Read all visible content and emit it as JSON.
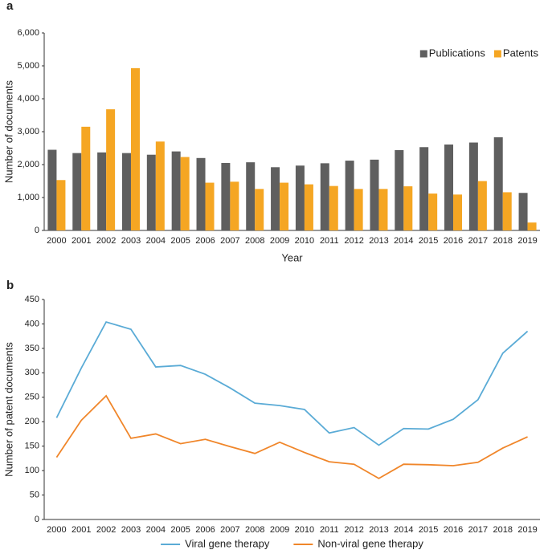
{
  "chart_data": [
    {
      "type": "bar",
      "panel": "a",
      "x_label": "Year",
      "y_label": "Number of documents",
      "legend": "upper right",
      "categories": [
        "2000",
        "2001",
        "2002",
        "2003",
        "2004",
        "2005",
        "2006",
        "2007",
        "2008",
        "2009",
        "2010",
        "2011",
        "2012",
        "2013",
        "2014",
        "2015",
        "2016",
        "2017",
        "2018",
        "2019"
      ],
      "series": [
        {
          "name": "Publications",
          "color": "#5f5f5f",
          "values": [
            2450,
            2350,
            2370,
            2350,
            2300,
            2400,
            2200,
            2050,
            2070,
            1920,
            1970,
            2040,
            2120,
            2150,
            2440,
            2530,
            2610,
            2670,
            2830,
            1140
          ]
        },
        {
          "name": "Patents",
          "color": "#f5a623",
          "values": [
            1530,
            3150,
            3680,
            4930,
            2700,
            2230,
            1450,
            1480,
            1260,
            1450,
            1400,
            1350,
            1260,
            1260,
            1340,
            1120,
            1090,
            1500,
            1160,
            240
          ]
        }
      ],
      "ylim": [
        0,
        6000
      ],
      "yticks": [
        0,
        {
          "value": 1000,
          "label": "1,000"
        },
        {
          "value": 2000,
          "label": "2,000"
        },
        {
          "value": 3000,
          "label": "3,000"
        },
        {
          "value": 4000,
          "label": "4,000"
        },
        {
          "value": 5000,
          "label": "5,000"
        },
        {
          "value": 6000,
          "label": "6,000"
        }
      ]
    },
    {
      "type": "line",
      "panel": "b",
      "y_label": "Number of patent documents",
      "legend": "bottom",
      "categories": [
        "2000",
        "2001",
        "2002",
        "2003",
        "2004",
        "2005",
        "2006",
        "2007",
        "2008",
        "2009",
        "2010",
        "2011",
        "2012",
        "2013",
        "2014",
        "2015",
        "2016",
        "2017",
        "2018",
        "2019"
      ],
      "series": [
        {
          "name": "Viral gene therapy",
          "color": "#5aabd6",
          "values": [
            208,
            310,
            404,
            389,
            312,
            315,
            297,
            269,
            238,
            233,
            225,
            177,
            188,
            152,
            186,
            185,
            205,
            245,
            340,
            385
          ]
        },
        {
          "name": "Non-viral gene therapy",
          "color": "#f0862a",
          "values": [
            127,
            203,
            253,
            166,
            175,
            155,
            164,
            149,
            135,
            158,
            137,
            118,
            113,
            84,
            113,
            112,
            110,
            117,
            146,
            169
          ]
        }
      ],
      "ylim": [
        0,
        450
      ],
      "yticks": [
        0,
        50,
        100,
        150,
        200,
        250,
        300,
        350,
        400,
        450
      ]
    }
  ]
}
